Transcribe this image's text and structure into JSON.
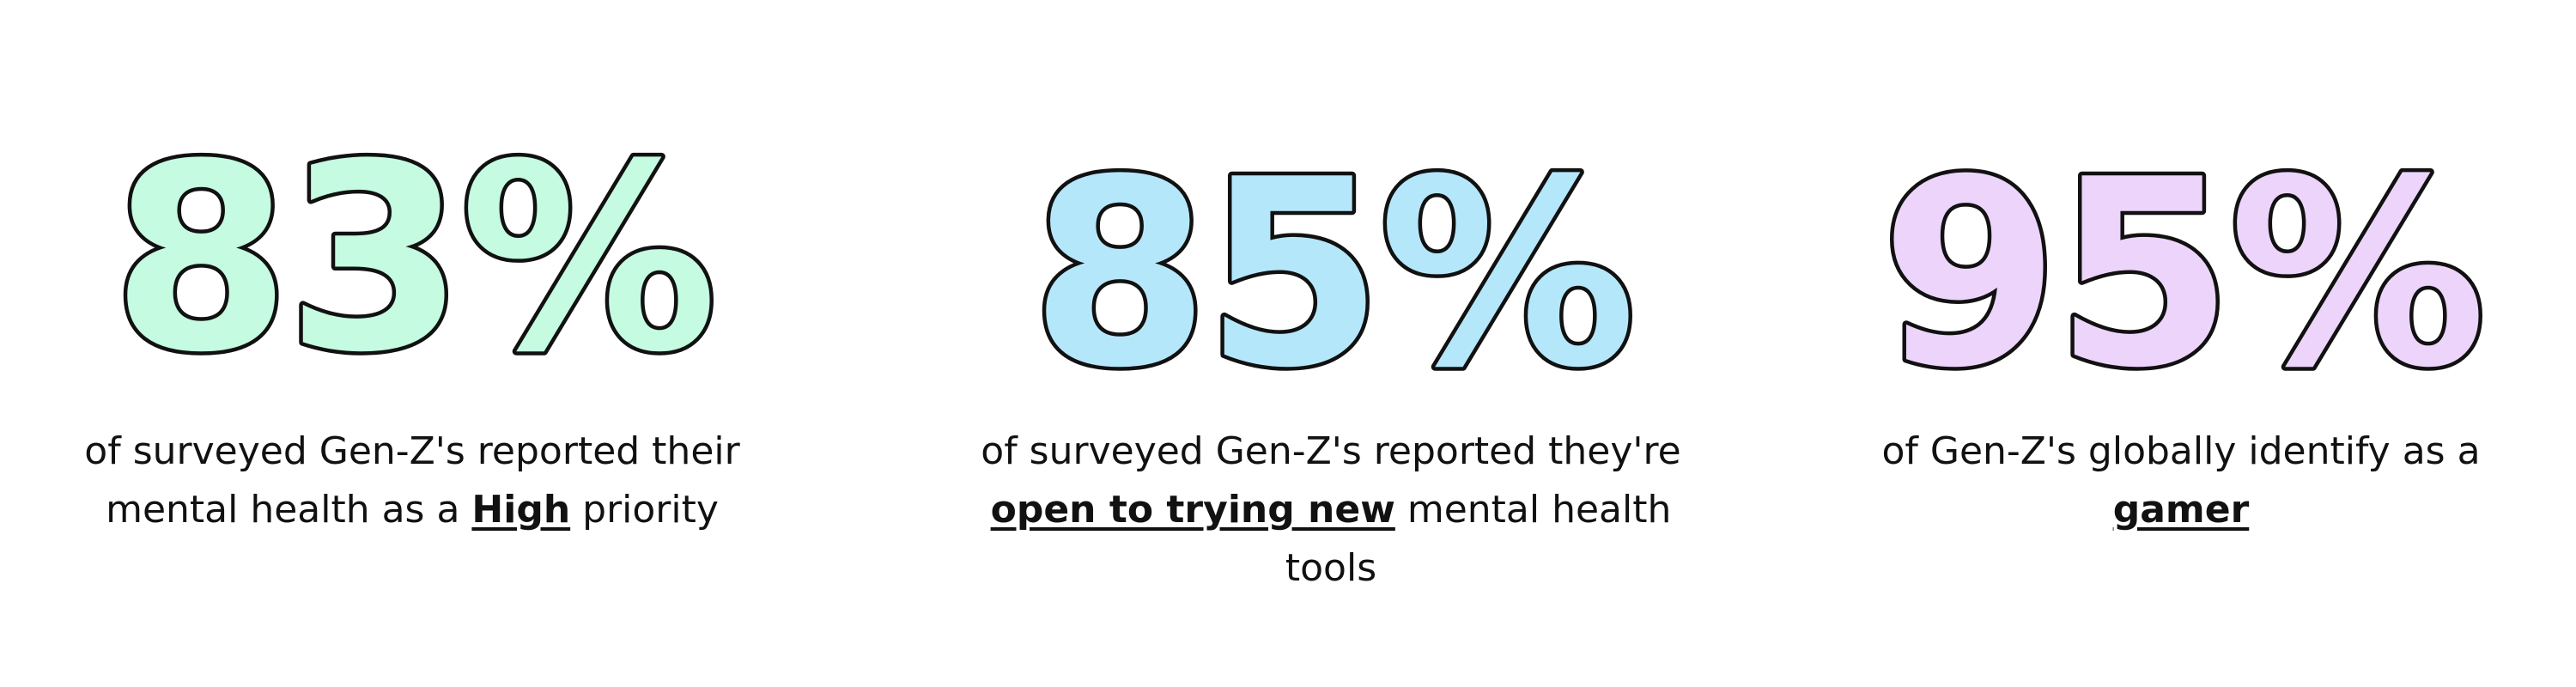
{
  "stats": [
    {
      "value": "83%",
      "color": "#c4fbe1",
      "caption": {
        "before": "of surveyed Gen-Z's reported their mental health as a ",
        "emphasis": "High",
        "after": " priority"
      }
    },
    {
      "value": "85%",
      "color": "#b5e7fb",
      "caption": {
        "before": "of surveyed Gen-Z's reported they're ",
        "emphasis": "open to trying new",
        "after": " mental health tools"
      }
    },
    {
      "value": "95%",
      "color": "#ecd4fb",
      "caption": {
        "before": "of Gen-Z's globally identify as a ",
        "emphasis": "gamer",
        "after": ""
      }
    }
  ],
  "outline_color": "#111111"
}
